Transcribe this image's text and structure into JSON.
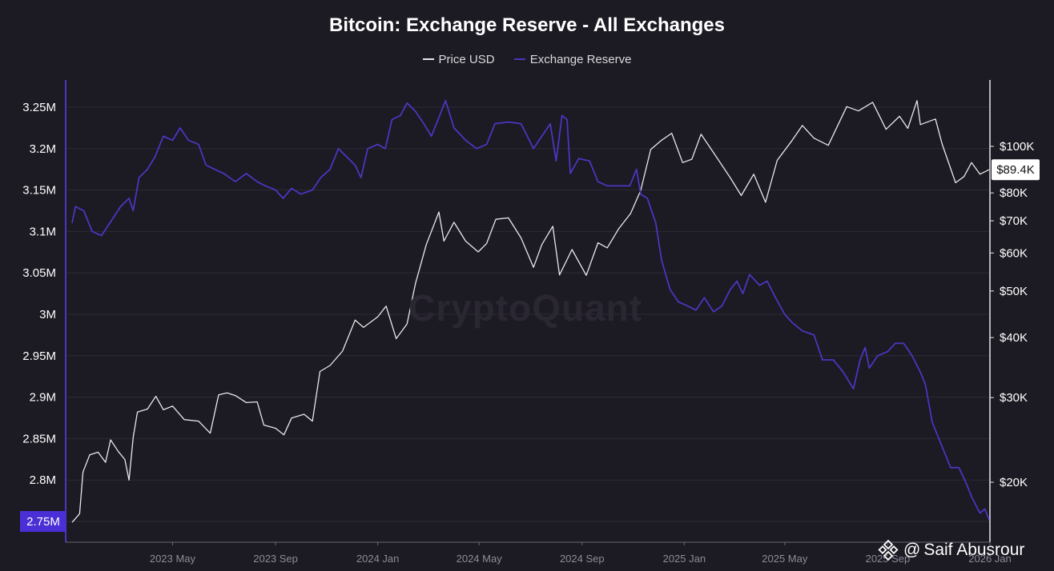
{
  "chart_data": {
    "type": "line",
    "title": "Bitcoin: Exchange Reserve - All Exchanges",
    "legend_placement": "top-center",
    "grid": true,
    "x_ticks": [
      "2023 May",
      "2023 Sep",
      "2024 Jan",
      "2024 May",
      "2024 Sep",
      "2025 Jan",
      "2025 May",
      "2025 Sep",
      "2026 Jan"
    ],
    "x_range": [
      "2023-01-01",
      "2026-01-01"
    ],
    "y_left": {
      "ticks": [
        "3.25M",
        "3.2M",
        "3.15M",
        "3.1M",
        "3.05M",
        "3M",
        "2.95M",
        "2.9M",
        "2.85M",
        "2.8M",
        "2.75M"
      ],
      "range": [
        2750000,
        3250000
      ],
      "current_label": "2.75M",
      "current_color": "#4a2fd6"
    },
    "y_right": {
      "ticks": [
        "$100K",
        "$80K",
        "$70K",
        "$60K",
        "$50K",
        "$40K",
        "$30K",
        "$20K"
      ],
      "scale": "log",
      "current_label": "$89.4K"
    },
    "series": [
      {
        "name": "Price USD",
        "color": "#e8e8ec",
        "axis": "right",
        "points": [
          [
            "2023-01-01",
            16500
          ],
          [
            "2023-01-10",
            17200
          ],
          [
            "2023-01-14",
            21000
          ],
          [
            "2023-01-22",
            22800
          ],
          [
            "2023-02-01",
            23100
          ],
          [
            "2023-02-10",
            22000
          ],
          [
            "2023-02-16",
            24500
          ],
          [
            "2023-02-25",
            23200
          ],
          [
            "2023-03-05",
            22300
          ],
          [
            "2023-03-10",
            20200
          ],
          [
            "2023-03-15",
            24800
          ],
          [
            "2023-03-20",
            28000
          ],
          [
            "2023-04-01",
            28400
          ],
          [
            "2023-04-11",
            30200
          ],
          [
            "2023-04-20",
            28300
          ],
          [
            "2023-05-01",
            28800
          ],
          [
            "2023-05-15",
            27000
          ],
          [
            "2023-06-01",
            26800
          ],
          [
            "2023-06-15",
            25300
          ],
          [
            "2023-06-25",
            30400
          ],
          [
            "2023-07-05",
            30700
          ],
          [
            "2023-07-15",
            30300
          ],
          [
            "2023-07-28",
            29300
          ],
          [
            "2023-08-10",
            29400
          ],
          [
            "2023-08-18",
            26300
          ],
          [
            "2023-09-01",
            25900
          ],
          [
            "2023-09-11",
            25100
          ],
          [
            "2023-09-20",
            27200
          ],
          [
            "2023-10-05",
            27700
          ],
          [
            "2023-10-15",
            26800
          ],
          [
            "2023-10-24",
            34000
          ],
          [
            "2023-11-05",
            35000
          ],
          [
            "2023-11-20",
            37500
          ],
          [
            "2023-12-05",
            43500
          ],
          [
            "2023-12-15",
            42000
          ],
          [
            "2024-01-01",
            44200
          ],
          [
            "2024-01-11",
            46500
          ],
          [
            "2024-01-23",
            39800
          ],
          [
            "2024-02-05",
            42700
          ],
          [
            "2024-02-15",
            51800
          ],
          [
            "2024-02-28",
            62500
          ],
          [
            "2024-03-14",
            73000
          ],
          [
            "2024-03-20",
            63500
          ],
          [
            "2024-04-01",
            69500
          ],
          [
            "2024-04-15",
            63500
          ],
          [
            "2024-04-30",
            60300
          ],
          [
            "2024-05-10",
            62800
          ],
          [
            "2024-05-21",
            70500
          ],
          [
            "2024-06-05",
            71000
          ],
          [
            "2024-06-20",
            64500
          ],
          [
            "2024-07-05",
            56000
          ],
          [
            "2024-07-15",
            62500
          ],
          [
            "2024-07-28",
            68200
          ],
          [
            "2024-08-05",
            54000
          ],
          [
            "2024-08-20",
            61000
          ],
          [
            "2024-09-06",
            53900
          ],
          [
            "2024-09-20",
            63000
          ],
          [
            "2024-10-01",
            61500
          ],
          [
            "2024-10-15",
            67500
          ],
          [
            "2024-10-29",
            72500
          ],
          [
            "2024-11-10",
            81000
          ],
          [
            "2024-11-22",
            98500
          ],
          [
            "2024-12-05",
            103000
          ],
          [
            "2024-12-17",
            106500
          ],
          [
            "2024-12-30",
            92500
          ],
          [
            "2025-01-10",
            94000
          ],
          [
            "2025-01-21",
            106000
          ],
          [
            "2025-02-05",
            97000
          ],
          [
            "2025-02-25",
            86000
          ],
          [
            "2025-03-10",
            79000
          ],
          [
            "2025-03-25",
            87500
          ],
          [
            "2025-04-08",
            76500
          ],
          [
            "2025-04-22",
            93500
          ],
          [
            "2025-05-10",
            103000
          ],
          [
            "2025-05-22",
            110500
          ],
          [
            "2025-06-05",
            104000
          ],
          [
            "2025-06-22",
            100500
          ],
          [
            "2025-07-14",
            121000
          ],
          [
            "2025-07-28",
            118500
          ],
          [
            "2025-08-14",
            123500
          ],
          [
            "2025-08-30",
            108500
          ],
          [
            "2025-09-15",
            115500
          ],
          [
            "2025-09-25",
            109000
          ],
          [
            "2025-10-06",
            124500
          ],
          [
            "2025-10-10",
            111000
          ],
          [
            "2025-10-28",
            114000
          ],
          [
            "2025-11-05",
            101000
          ],
          [
            "2025-11-21",
            84000
          ],
          [
            "2025-12-01",
            86500
          ],
          [
            "2025-12-10",
            92500
          ],
          [
            "2025-12-20",
            87500
          ],
          [
            "2025-12-31",
            89400
          ]
        ]
      },
      {
        "name": "Exchange Reserve",
        "color": "#4c35c0",
        "axis": "left",
        "points": [
          [
            "2023-01-01",
            3110000
          ],
          [
            "2023-01-05",
            3130000
          ],
          [
            "2023-01-15",
            3125000
          ],
          [
            "2023-01-25",
            3100000
          ],
          [
            "2023-02-05",
            3095000
          ],
          [
            "2023-02-15",
            3110000
          ],
          [
            "2023-02-28",
            3130000
          ],
          [
            "2023-03-10",
            3140000
          ],
          [
            "2023-03-15",
            3125000
          ],
          [
            "2023-03-22",
            3165000
          ],
          [
            "2023-04-01",
            3175000
          ],
          [
            "2023-04-10",
            3190000
          ],
          [
            "2023-04-20",
            3215000
          ],
          [
            "2023-05-01",
            3210000
          ],
          [
            "2023-05-10",
            3225000
          ],
          [
            "2023-05-20",
            3210000
          ],
          [
            "2023-06-01",
            3205000
          ],
          [
            "2023-06-10",
            3180000
          ],
          [
            "2023-06-20",
            3175000
          ],
          [
            "2023-07-01",
            3170000
          ],
          [
            "2023-07-15",
            3160000
          ],
          [
            "2023-07-28",
            3170000
          ],
          [
            "2023-08-10",
            3160000
          ],
          [
            "2023-08-20",
            3155000
          ],
          [
            "2023-09-01",
            3150000
          ],
          [
            "2023-09-10",
            3140000
          ],
          [
            "2023-09-20",
            3152000
          ],
          [
            "2023-10-01",
            3145000
          ],
          [
            "2023-10-15",
            3150000
          ],
          [
            "2023-10-25",
            3165000
          ],
          [
            "2023-11-05",
            3175000
          ],
          [
            "2023-11-15",
            3200000
          ],
          [
            "2023-11-25",
            3190000
          ],
          [
            "2023-12-05",
            3180000
          ],
          [
            "2023-12-12",
            3165000
          ],
          [
            "2023-12-20",
            3200000
          ],
          [
            "2024-01-01",
            3205000
          ],
          [
            "2024-01-10",
            3200000
          ],
          [
            "2024-01-18",
            3235000
          ],
          [
            "2024-01-28",
            3240000
          ],
          [
            "2024-02-05",
            3255000
          ],
          [
            "2024-02-15",
            3245000
          ],
          [
            "2024-02-25",
            3230000
          ],
          [
            "2024-03-05",
            3215000
          ],
          [
            "2024-03-15",
            3240000
          ],
          [
            "2024-03-22",
            3258000
          ],
          [
            "2024-04-01",
            3225000
          ],
          [
            "2024-04-15",
            3210000
          ],
          [
            "2024-04-28",
            3200000
          ],
          [
            "2024-05-10",
            3205000
          ],
          [
            "2024-05-20",
            3230000
          ],
          [
            "2024-06-05",
            3232000
          ],
          [
            "2024-06-20",
            3230000
          ],
          [
            "2024-07-05",
            3200000
          ],
          [
            "2024-07-15",
            3215000
          ],
          [
            "2024-07-25",
            3230000
          ],
          [
            "2024-08-01",
            3185000
          ],
          [
            "2024-08-08",
            3240000
          ],
          [
            "2024-08-14",
            3235000
          ],
          [
            "2024-08-18",
            3170000
          ],
          [
            "2024-08-28",
            3188000
          ],
          [
            "2024-09-10",
            3185000
          ],
          [
            "2024-09-20",
            3160000
          ],
          [
            "2024-10-01",
            3155000
          ],
          [
            "2024-10-15",
            3155000
          ],
          [
            "2024-10-28",
            3155000
          ],
          [
            "2024-11-05",
            3175000
          ],
          [
            "2024-11-10",
            3145000
          ],
          [
            "2024-11-18",
            3140000
          ],
          [
            "2024-11-28",
            3110000
          ],
          [
            "2024-12-05",
            3065000
          ],
          [
            "2024-12-15",
            3030000
          ],
          [
            "2024-12-25",
            3015000
          ],
          [
            "2025-01-05",
            3010000
          ],
          [
            "2025-01-15",
            3005000
          ],
          [
            "2025-01-25",
            3020000
          ],
          [
            "2025-02-05",
            3003000
          ],
          [
            "2025-02-15",
            3010000
          ],
          [
            "2025-02-25",
            3030000
          ],
          [
            "2025-03-05",
            3040000
          ],
          [
            "2025-03-12",
            3025000
          ],
          [
            "2025-03-20",
            3048000
          ],
          [
            "2025-04-01",
            3035000
          ],
          [
            "2025-04-10",
            3040000
          ],
          [
            "2025-04-20",
            3020000
          ],
          [
            "2025-05-01",
            3000000
          ],
          [
            "2025-05-10",
            2990000
          ],
          [
            "2025-05-22",
            2980000
          ],
          [
            "2025-06-05",
            2975000
          ],
          [
            "2025-06-15",
            2945000
          ],
          [
            "2025-06-28",
            2945000
          ],
          [
            "2025-07-10",
            2930000
          ],
          [
            "2025-07-22",
            2910000
          ],
          [
            "2025-07-30",
            2945000
          ],
          [
            "2025-08-05",
            2960000
          ],
          [
            "2025-08-10",
            2935000
          ],
          [
            "2025-08-20",
            2950000
          ],
          [
            "2025-09-01",
            2955000
          ],
          [
            "2025-09-10",
            2965000
          ],
          [
            "2025-09-20",
            2965000
          ],
          [
            "2025-09-30",
            2950000
          ],
          [
            "2025-10-10",
            2930000
          ],
          [
            "2025-10-16",
            2915000
          ],
          [
            "2025-10-24",
            2870000
          ],
          [
            "2025-11-05",
            2840000
          ],
          [
            "2025-11-15",
            2815000
          ],
          [
            "2025-11-25",
            2815000
          ],
          [
            "2025-12-02",
            2800000
          ],
          [
            "2025-12-10",
            2780000
          ],
          [
            "2025-12-20",
            2760000
          ],
          [
            "2025-12-26",
            2765000
          ],
          [
            "2025-12-31",
            2752000
          ]
        ]
      }
    ],
    "watermark": "CryptoQuant",
    "credit": "Saif Abusrour"
  }
}
